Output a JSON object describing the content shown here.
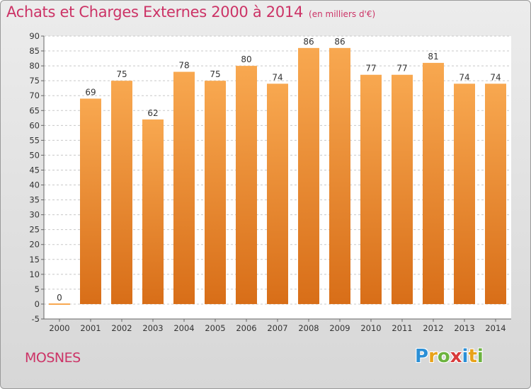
{
  "header": {
    "title": "Achats et Charges Externes 2000 à 2014",
    "subtitle": "(en milliers d'€)"
  },
  "footer": {
    "commune": "MOSNES",
    "logo_letters": [
      {
        "char": "P",
        "color": "#2b8fd6"
      },
      {
        "char": "r",
        "color": "#e8a21a"
      },
      {
        "char": "o",
        "color": "#6cb33f"
      },
      {
        "char": "x",
        "color": "#d83a3a"
      },
      {
        "char": "i",
        "color": "#2b8fd6"
      },
      {
        "char": "t",
        "color": "#e8a21a"
      },
      {
        "char": "i",
        "color": "#6cb33f"
      }
    ]
  },
  "colors": {
    "bar_light": "#f8a850",
    "bar_dark": "#d86e18",
    "title": "#cc3366"
  },
  "chart_data": {
    "type": "bar",
    "categories": [
      "2000",
      "2001",
      "2002",
      "2003",
      "2004",
      "2005",
      "2006",
      "2007",
      "2008",
      "2009",
      "2010",
      "2011",
      "2012",
      "2013",
      "2014"
    ],
    "values": [
      0,
      69,
      75,
      62,
      78,
      75,
      80,
      74,
      86,
      86,
      77,
      77,
      81,
      74,
      74
    ],
    "ylim": [
      -5,
      90
    ],
    "yticks": [
      -5,
      0,
      5,
      10,
      15,
      20,
      25,
      30,
      35,
      40,
      45,
      50,
      55,
      60,
      65,
      70,
      75,
      80,
      85,
      90
    ],
    "grid": true,
    "data_labels": true
  }
}
